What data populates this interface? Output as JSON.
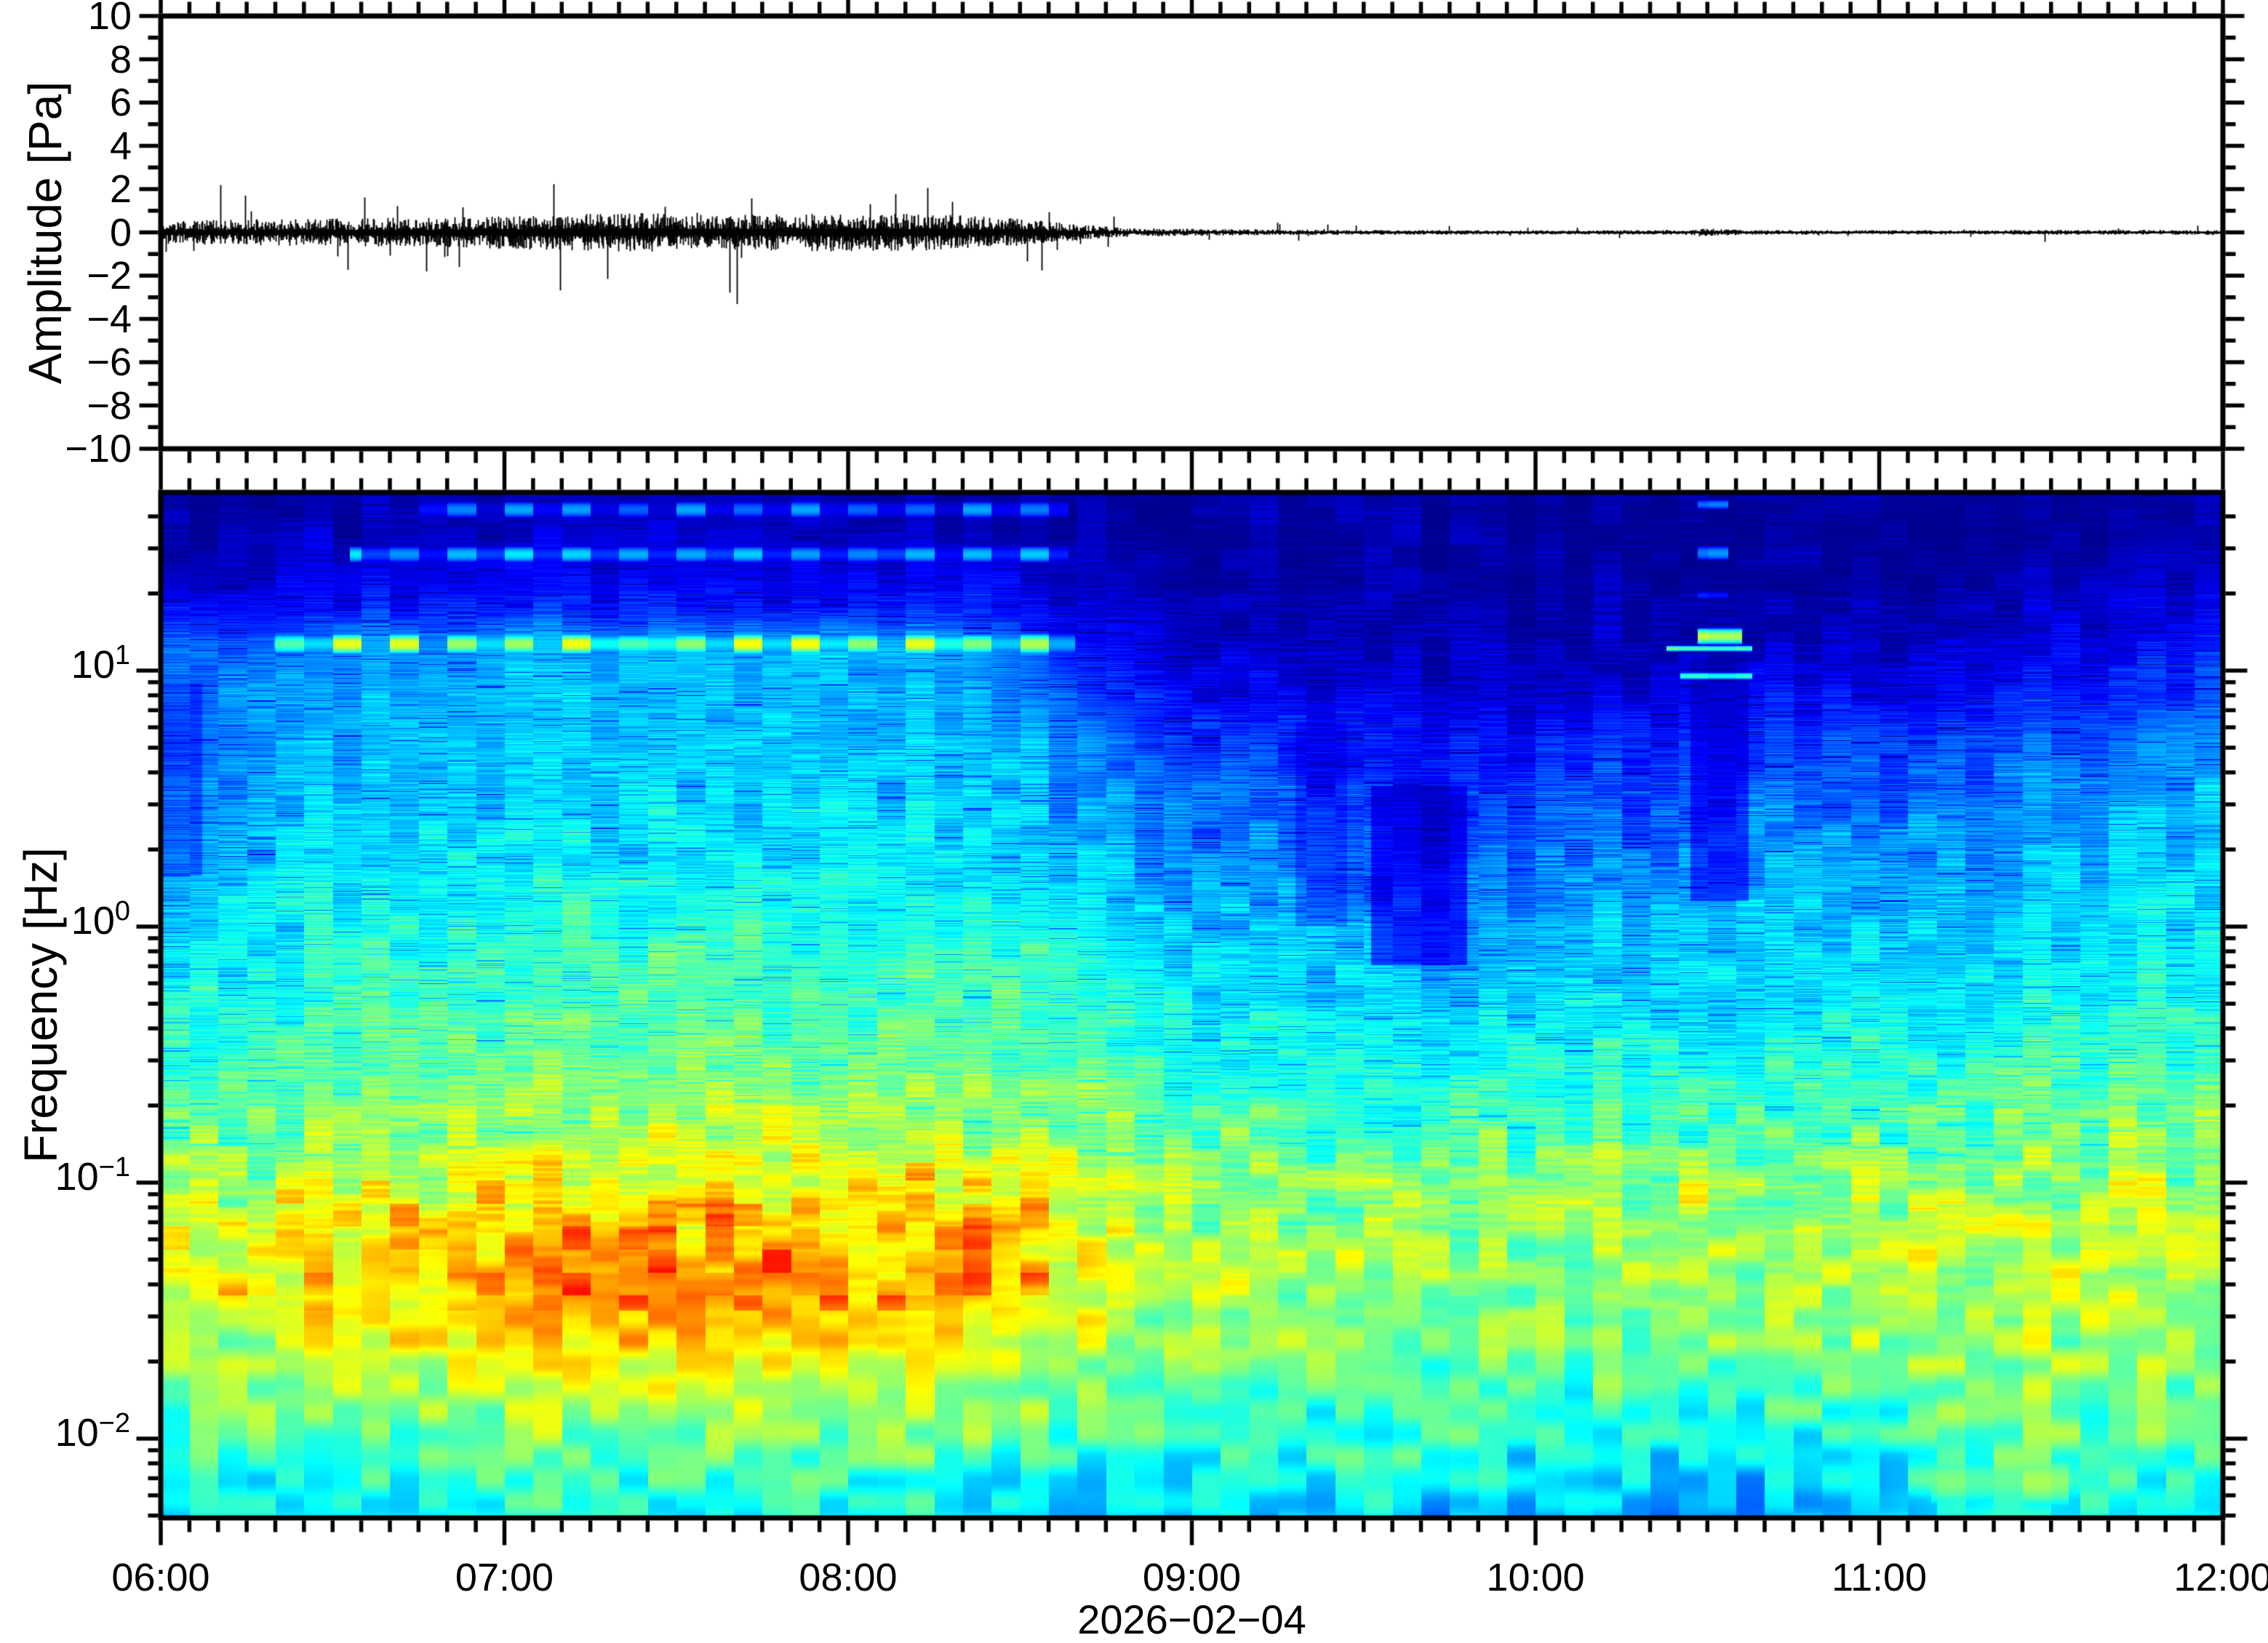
{
  "figure": {
    "background": "#ffffff",
    "axis_color": "#000000",
    "date_label": "2026−02−04"
  },
  "chart_data": [
    {
      "type": "line",
      "name": "pressure-waveform",
      "title": "",
      "xlabel": "",
      "ylabel": "Amplitude [Pa]",
      "x_hours": [
        6,
        12
      ],
      "ylim": [
        -10,
        10
      ],
      "ytick_major_values": [
        -10,
        -8,
        -6,
        -4,
        -2,
        0,
        2,
        4,
        6,
        8,
        10
      ],
      "ytick_major_labels": [
        "−10",
        "−8",
        "−6",
        "−4",
        "−2",
        "0",
        "2",
        "4",
        "6",
        "8",
        "10"
      ],
      "ytick_minor_step": 1,
      "line_color": "#000000",
      "envelope_pa": [
        {
          "t": 6.0,
          "a": 0.3
        },
        {
          "t": 6.4,
          "a": 0.35
        },
        {
          "t": 6.8,
          "a": 0.38
        },
        {
          "t": 7.1,
          "a": 0.45
        },
        {
          "t": 7.4,
          "a": 0.5
        },
        {
          "t": 7.7,
          "a": 0.45
        },
        {
          "t": 8.0,
          "a": 0.5
        },
        {
          "t": 8.3,
          "a": 0.45
        },
        {
          "t": 8.5,
          "a": 0.35
        },
        {
          "t": 8.65,
          "a": 0.22
        },
        {
          "t": 8.8,
          "a": 0.12
        },
        {
          "t": 9.0,
          "a": 0.09
        },
        {
          "t": 9.3,
          "a": 0.07
        },
        {
          "t": 9.6,
          "a": 0.06
        },
        {
          "t": 10.0,
          "a": 0.055
        },
        {
          "t": 10.42,
          "a": 0.06
        },
        {
          "t": 10.5,
          "a": 0.1
        },
        {
          "t": 10.62,
          "a": 0.06
        },
        {
          "t": 11.0,
          "a": 0.055
        },
        {
          "t": 11.5,
          "a": 0.06
        },
        {
          "t": 12.0,
          "a": 0.065
        }
      ],
      "spike_probability": 0.035,
      "spike_factor_max": 4.5
    },
    {
      "type": "heatmap",
      "name": "spectrogram",
      "title": "",
      "xlabel": "2026−02−04",
      "ylabel": "Frequency [Hz]",
      "x_hours": [
        6,
        12
      ],
      "xtick_major_hours": [
        6,
        7,
        8,
        9,
        10,
        11,
        12
      ],
      "xtick_labels": [
        "06:00",
        "07:00",
        "08:00",
        "09:00",
        "10:00",
        "11:00",
        "12:00"
      ],
      "xtick_minor_minutes": 5,
      "log_freq_range": [
        -2.31,
        1.696
      ],
      "ytick_major": [
        {
          "logf": 1,
          "base": "10",
          "exp": "1"
        },
        {
          "logf": 0,
          "base": "10",
          "exp": "0"
        },
        {
          "logf": -1,
          "base": "10",
          "exp": "−1"
        },
        {
          "logf": -2,
          "base": "10",
          "exp": "−2"
        }
      ],
      "column_minutes": 5,
      "colormap": "jet",
      "value_scale": "relative power 0..1",
      "grid": {
        "t": [
          6.0,
          6.33,
          6.67,
          7.0,
          7.33,
          7.67,
          8.0,
          8.33,
          8.67,
          9.0,
          9.33,
          9.67,
          10.0,
          10.33,
          10.67,
          11.0,
          11.33,
          11.67,
          12.0
        ],
        "logf": [
          1.7,
          1.55,
          1.4,
          1.25,
          1.1,
          0.95,
          0.75,
          0.5,
          0.25,
          0.0,
          -0.3,
          -0.6,
          -0.9,
          -1.1,
          -1.3,
          -1.55,
          -1.8,
          -2.05,
          -2.31
        ],
        "v": [
          [
            0.04,
            0.04,
            0.04,
            0.04,
            0.04,
            0.04,
            0.04,
            0.04,
            0.04,
            0.03,
            0.03,
            0.03,
            0.03,
            0.03,
            0.03,
            0.03,
            0.03,
            0.03,
            0.04
          ],
          [
            0.05,
            0.06,
            0.06,
            0.07,
            0.07,
            0.07,
            0.07,
            0.06,
            0.05,
            0.03,
            0.03,
            0.03,
            0.03,
            0.03,
            0.03,
            0.03,
            0.03,
            0.04,
            0.05
          ],
          [
            0.08,
            0.09,
            0.1,
            0.11,
            0.11,
            0.11,
            0.11,
            0.1,
            0.08,
            0.04,
            0.03,
            0.03,
            0.03,
            0.03,
            0.03,
            0.03,
            0.04,
            0.05,
            0.06
          ],
          [
            0.12,
            0.13,
            0.14,
            0.15,
            0.15,
            0.15,
            0.15,
            0.14,
            0.11,
            0.05,
            0.04,
            0.04,
            0.04,
            0.04,
            0.04,
            0.05,
            0.06,
            0.08,
            0.1
          ],
          [
            0.22,
            0.25,
            0.28,
            0.3,
            0.3,
            0.3,
            0.3,
            0.28,
            0.15,
            0.07,
            0.05,
            0.05,
            0.05,
            0.06,
            0.06,
            0.07,
            0.09,
            0.11,
            0.14
          ],
          [
            0.26,
            0.28,
            0.3,
            0.31,
            0.31,
            0.31,
            0.31,
            0.3,
            0.2,
            0.12,
            0.09,
            0.08,
            0.08,
            0.09,
            0.1,
            0.11,
            0.13,
            0.15,
            0.18
          ],
          [
            0.25,
            0.29,
            0.31,
            0.32,
            0.32,
            0.32,
            0.32,
            0.31,
            0.27,
            0.18,
            0.14,
            0.12,
            0.14,
            0.16,
            0.17,
            0.18,
            0.2,
            0.22,
            0.26
          ],
          [
            0.27,
            0.31,
            0.33,
            0.34,
            0.34,
            0.34,
            0.34,
            0.33,
            0.3,
            0.24,
            0.2,
            0.15,
            0.2,
            0.22,
            0.23,
            0.24,
            0.26,
            0.28,
            0.31
          ],
          [
            0.3,
            0.34,
            0.36,
            0.37,
            0.37,
            0.37,
            0.36,
            0.36,
            0.33,
            0.28,
            0.25,
            0.18,
            0.25,
            0.27,
            0.28,
            0.29,
            0.3,
            0.32,
            0.34
          ],
          [
            0.35,
            0.38,
            0.4,
            0.41,
            0.42,
            0.42,
            0.41,
            0.41,
            0.4,
            0.33,
            0.3,
            0.26,
            0.3,
            0.32,
            0.32,
            0.33,
            0.34,
            0.36,
            0.37
          ],
          [
            0.4,
            0.42,
            0.44,
            0.45,
            0.46,
            0.46,
            0.45,
            0.45,
            0.44,
            0.38,
            0.35,
            0.33,
            0.35,
            0.36,
            0.36,
            0.37,
            0.38,
            0.4,
            0.41
          ],
          [
            0.45,
            0.47,
            0.49,
            0.5,
            0.51,
            0.51,
            0.5,
            0.5,
            0.49,
            0.43,
            0.41,
            0.4,
            0.41,
            0.42,
            0.42,
            0.43,
            0.44,
            0.46,
            0.46
          ],
          [
            0.5,
            0.53,
            0.55,
            0.57,
            0.58,
            0.58,
            0.57,
            0.57,
            0.55,
            0.49,
            0.47,
            0.46,
            0.47,
            0.48,
            0.48,
            0.49,
            0.5,
            0.51,
            0.51
          ],
          [
            0.55,
            0.58,
            0.62,
            0.65,
            0.66,
            0.66,
            0.65,
            0.64,
            0.6,
            0.53,
            0.51,
            0.5,
            0.51,
            0.52,
            0.52,
            0.53,
            0.54,
            0.55,
            0.54
          ],
          [
            0.58,
            0.62,
            0.66,
            0.7,
            0.72,
            0.72,
            0.71,
            0.7,
            0.63,
            0.55,
            0.53,
            0.52,
            0.52,
            0.53,
            0.53,
            0.55,
            0.56,
            0.57,
            0.55
          ],
          [
            0.56,
            0.6,
            0.64,
            0.68,
            0.7,
            0.7,
            0.69,
            0.67,
            0.6,
            0.53,
            0.51,
            0.5,
            0.5,
            0.51,
            0.51,
            0.53,
            0.55,
            0.55,
            0.53
          ],
          [
            0.5,
            0.53,
            0.55,
            0.57,
            0.58,
            0.58,
            0.57,
            0.55,
            0.52,
            0.48,
            0.46,
            0.45,
            0.44,
            0.45,
            0.45,
            0.47,
            0.5,
            0.5,
            0.48
          ],
          [
            0.42,
            0.45,
            0.46,
            0.47,
            0.47,
            0.47,
            0.46,
            0.45,
            0.43,
            0.41,
            0.4,
            0.4,
            0.37,
            0.36,
            0.37,
            0.4,
            0.46,
            0.44,
            0.4
          ],
          [
            0.33,
            0.36,
            0.38,
            0.38,
            0.38,
            0.37,
            0.36,
            0.35,
            0.34,
            0.33,
            0.32,
            0.33,
            0.3,
            0.29,
            0.3,
            0.33,
            0.42,
            0.38,
            0.33
          ]
        ]
      },
      "features": [
        {
          "kind": "band",
          "t": [
            6.75,
            8.64
          ],
          "logf": [
            1.595,
            1.665
          ],
          "v": 0.27,
          "alt": 0.4
        },
        {
          "kind": "band",
          "t": [
            6.55,
            8.64
          ],
          "logf": [
            1.42,
            1.49
          ],
          "v": 0.33,
          "alt": 0.45
        },
        {
          "kind": "band",
          "t": [
            6.33,
            8.66
          ],
          "logf": [
            1.06,
            1.15
          ],
          "v": 0.58,
          "alt": 0.55
        },
        {
          "kind": "dark",
          "t": [
            6.0,
            6.12
          ],
          "logf": [
            0.2,
            0.95
          ],
          "mult": 0.72
        },
        {
          "kind": "dark",
          "t": [
            9.3,
            9.45
          ],
          "logf": [
            0.0,
            0.8
          ],
          "mult": 0.78
        },
        {
          "kind": "dark",
          "t": [
            9.52,
            9.8
          ],
          "logf": [
            -0.15,
            0.55
          ],
          "mult": 0.55
        },
        {
          "kind": "dark",
          "t": [
            10.45,
            10.62
          ],
          "logf": [
            0.1,
            1.05
          ],
          "mult": 0.6
        },
        {
          "kind": "band",
          "t": [
            10.47,
            10.6
          ],
          "logf": [
            1.1,
            1.17
          ],
          "v": 0.55
        },
        {
          "kind": "band",
          "t": [
            10.38,
            10.63
          ],
          "logf": [
            1.075,
            1.1
          ],
          "v": 0.45
        },
        {
          "kind": "band",
          "t": [
            10.42,
            10.63
          ],
          "logf": [
            0.965,
            0.995
          ],
          "v": 0.4
        },
        {
          "kind": "band",
          "t": [
            10.47,
            10.56
          ],
          "logf": [
            1.63,
            1.67
          ],
          "v": 0.25
        },
        {
          "kind": "band",
          "t": [
            10.47,
            10.56
          ],
          "logf": [
            1.43,
            1.49
          ],
          "v": 0.3
        },
        {
          "kind": "band",
          "t": [
            10.47,
            10.56
          ],
          "logf": [
            1.28,
            1.31
          ],
          "v": 0.18
        },
        {
          "kind": "band",
          "t": [
            11.15,
            11.55
          ],
          "logf": [
            -2.31,
            -2.02
          ],
          "v": 0.5
        }
      ],
      "texture": {
        "fine_bin_hz": 0.0024,
        "fine_amp_top": 0.03,
        "fine_amp_high": 0.05,
        "fine_amp_mid": 0.06,
        "fine_amp_low": 0.045,
        "fine_amp_bottom": 0.025,
        "blob_step_decades": 0.09,
        "blob_amp_low": 0.085,
        "blob_amp_mid": 0.05,
        "blob_amp_high": 0.03,
        "dark_line_chance": 0.05,
        "dark_line_strength": 0.13,
        "warm_speckle_threshold": 0.72,
        "warm_speckle_gain": 0.45,
        "column_tint": 0.018
      }
    }
  ]
}
